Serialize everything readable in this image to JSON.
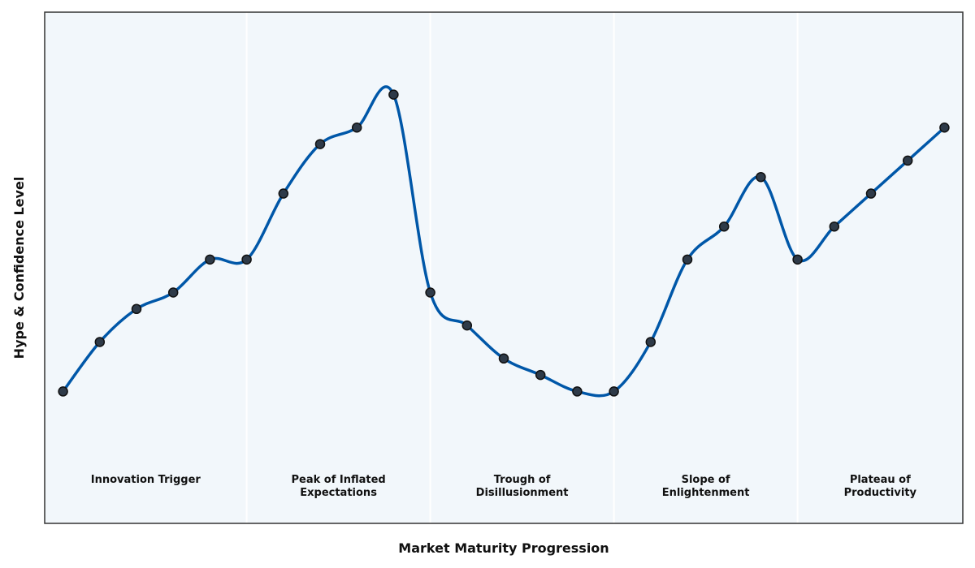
{
  "chart_data": {
    "type": "line",
    "title": "",
    "xlabel": "Market Maturity Progression",
    "ylabel": "Hype & Confidence Level",
    "x_ticks_visible": false,
    "y_ticks_visible": false,
    "grid": false,
    "legend": "none",
    "xlim": [
      -0.5,
      24.5
    ],
    "ylim": [
      0,
      155
    ],
    "phases": [
      {
        "label": [
          "Innovation Trigger"
        ],
        "start": -0.5,
        "end": 5
      },
      {
        "label": [
          "Peak of Inflated",
          "Expectations"
        ],
        "start": 5,
        "end": 10
      },
      {
        "label": [
          "Trough of",
          "Disillusionment"
        ],
        "start": 10,
        "end": 15
      },
      {
        "label": [
          "Slope of",
          "Enlightenment"
        ],
        "start": 15,
        "end": 20
      },
      {
        "label": [
          "Plateau of",
          "Productivity"
        ],
        "start": 20,
        "end": 24.5
      }
    ],
    "series": [
      {
        "x": [
          0,
          1,
          2,
          3,
          4,
          5,
          6,
          7,
          8,
          9,
          10,
          11,
          12,
          13,
          14,
          15,
          16,
          17,
          18,
          19,
          20,
          21,
          22,
          23,
          24
        ],
        "y": [
          40,
          55,
          65,
          70,
          80,
          80,
          100,
          115,
          120,
          130,
          70,
          60,
          50,
          45,
          40,
          40,
          55,
          80,
          90,
          105,
          80,
          90,
          100,
          110,
          120
        ]
      }
    ],
    "colors": {
      "line": "#0057a8",
      "marker_fill": "#2e3a48",
      "marker_edge": "#111111",
      "plot_background": "#f2f7fb",
      "phase_divider": "#ffffff",
      "frame": "#333333"
    }
  }
}
